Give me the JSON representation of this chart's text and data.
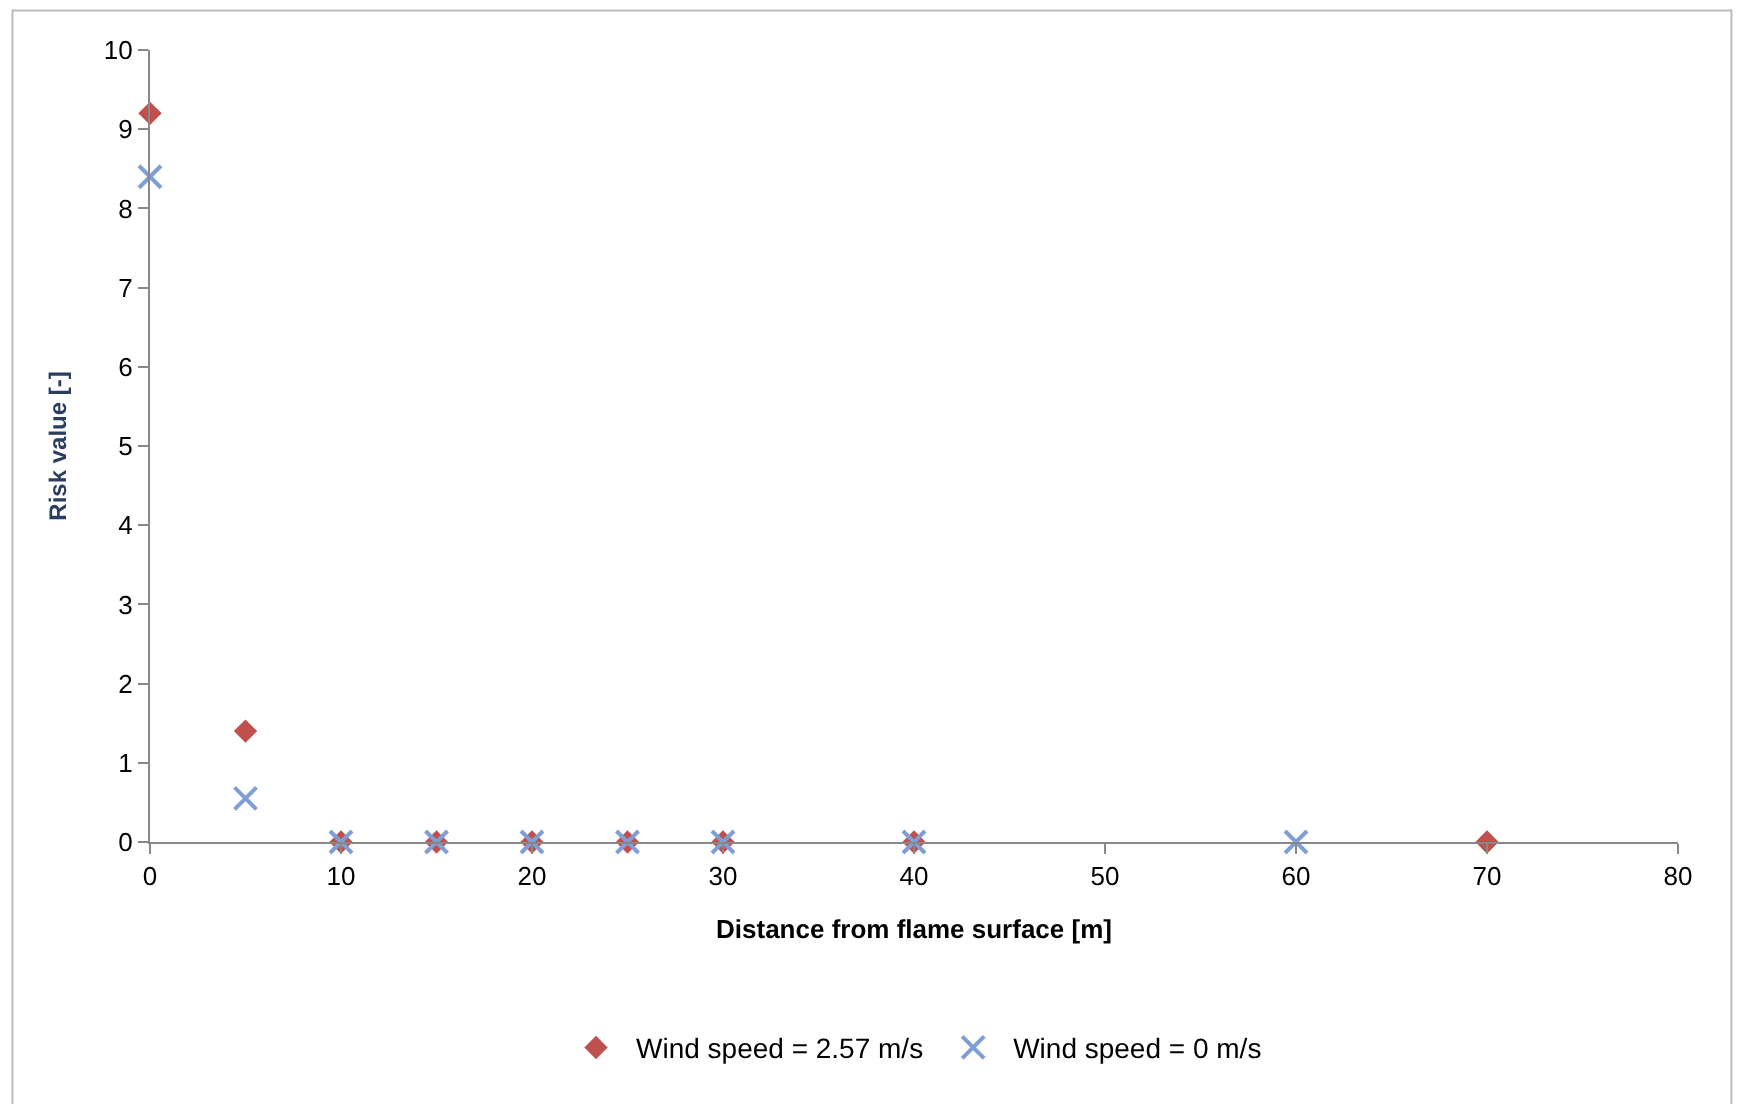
{
  "chart_data": {
    "type": "scatter",
    "xlabel": "Distance from flame surface [m]",
    "ylabel": "Risk value [-]",
    "series": [
      {
        "name": "Wind speed = 2.57 m/s",
        "color": "#c0504d",
        "marker": "diamond",
        "x": [
          0,
          5,
          10,
          15,
          20,
          25,
          30,
          40,
          70
        ],
        "values": [
          9.2,
          1.4,
          0,
          0,
          0,
          0,
          0,
          0,
          0
        ]
      },
      {
        "name": "Wind speed = 0 m/s",
        "color": "#7f9fd4",
        "marker": "cross",
        "x": [
          0,
          5,
          10,
          15,
          20,
          25,
          30,
          40,
          60
        ],
        "values": [
          8.4,
          0.55,
          0,
          0,
          0,
          0,
          0,
          0,
          0
        ]
      }
    ],
    "xlim": [
      0,
      80
    ],
    "xticks": [
      0,
      10,
      20,
      30,
      40,
      50,
      60,
      70,
      80
    ],
    "ylim": [
      0,
      10
    ],
    "yticks": [
      0,
      1,
      2,
      3,
      4,
      5,
      6,
      7,
      8,
      9,
      10
    ],
    "legend": "bottom"
  }
}
